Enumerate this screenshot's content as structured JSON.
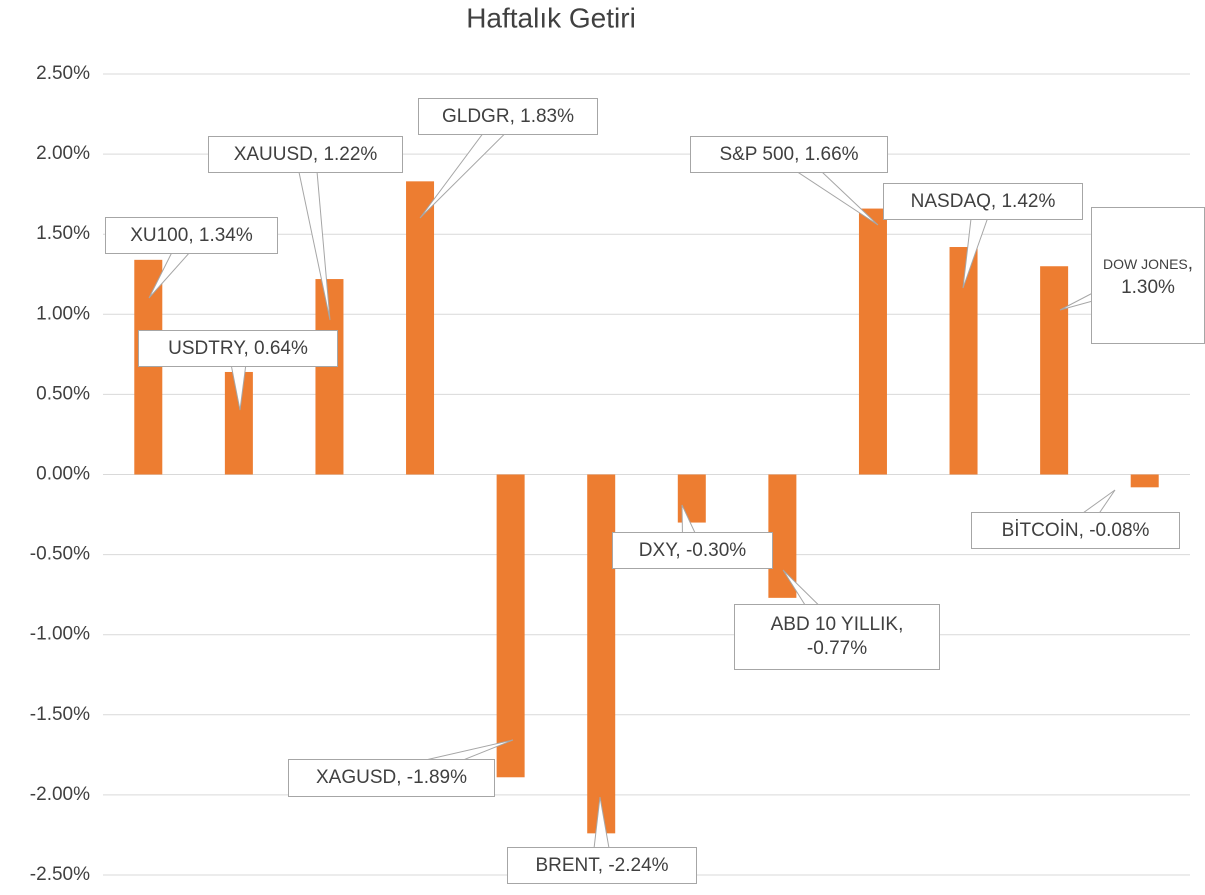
{
  "chart_data": {
    "type": "bar",
    "title": "Haftalık Getiri",
    "categories": [
      "XU100",
      "USDTRY",
      "XAUUSD",
      "GLDGR",
      "XAGUSD",
      "BRENT",
      "DXY",
      "ABD 10 YILLIK",
      "S&P 500",
      "NASDAQ",
      "DOW JONES",
      "BİTCOİN"
    ],
    "values": [
      1.34,
      0.64,
      1.22,
      1.83,
      -1.89,
      -2.24,
      -0.3,
      -0.77,
      1.66,
      1.42,
      1.3,
      -0.08
    ],
    "value_labels": [
      "1.34%",
      "0.64%",
      "1.22%",
      "1.83%",
      "-1.89%",
      "-2.24%",
      "-0.30%",
      "-0.77%",
      "1.66%",
      "1.42%",
      "1.30%",
      "-0.08%"
    ],
    "color": "#ed7d31",
    "ylim": [
      -2.5,
      2.5
    ],
    "yticks": [
      {
        "value": -2.5,
        "label": "-2.50%"
      },
      {
        "value": -2,
        "label": "-2.00%"
      },
      {
        "value": -1.5,
        "label": "-1.50%"
      },
      {
        "value": -1,
        "label": "-1.00%"
      },
      {
        "value": -0.5,
        "label": "-0.50%"
      },
      {
        "value": 0,
        "label": "0.00%"
      },
      {
        "value": 0.5,
        "label": "0.50%"
      },
      {
        "value": 1,
        "label": "1.00%"
      },
      {
        "value": 1.5,
        "label": "1.50%"
      },
      {
        "value": 2,
        "label": "2.00%"
      },
      {
        "value": 2.5,
        "label": "2.50%"
      }
    ],
    "grid": true
  }
}
